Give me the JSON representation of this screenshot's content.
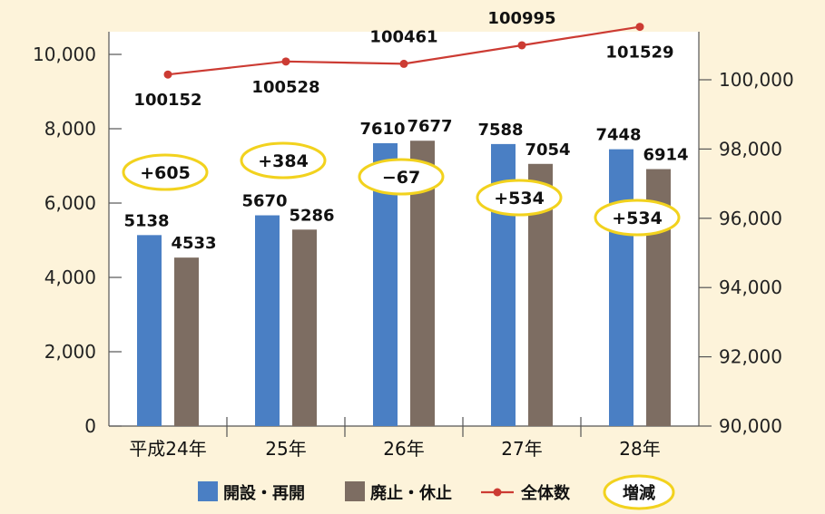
{
  "chart_data": {
    "type": "bar",
    "categories": [
      "平成24年",
      "25年",
      "26年",
      "27年",
      "28年"
    ],
    "series": [
      {
        "name": "開設・再開",
        "type": "bar",
        "axis": "left",
        "color": "#4a7fc4",
        "values": [
          5138,
          5670,
          7610,
          7588,
          7448
        ]
      },
      {
        "name": "廃止・休止",
        "type": "bar",
        "axis": "left",
        "color": "#7d6d62",
        "values": [
          4533,
          5286,
          7677,
          7054,
          6914
        ]
      },
      {
        "name": "全体数",
        "type": "line",
        "axis": "right",
        "color": "#cc3b33",
        "values": [
          100152,
          100528,
          100461,
          100995,
          101529
        ]
      }
    ],
    "change": {
      "name": "増減",
      "color": "#f2d21e",
      "labels": [
        "+605",
        "+384",
        "−67",
        "+534",
        "+534"
      ]
    },
    "y_left": {
      "min": 0,
      "max": 10000,
      "ticks": [
        "0",
        "2,000",
        "4,000",
        "6,000",
        "8,000",
        "10,000"
      ]
    },
    "y_right": {
      "min": 90000,
      "max": 100000,
      "ticks": [
        "90,000",
        "92,000",
        "94,000",
        "96,000",
        "98,000",
        "100,000"
      ]
    },
    "grid": false,
    "legend_position": "bottom"
  }
}
